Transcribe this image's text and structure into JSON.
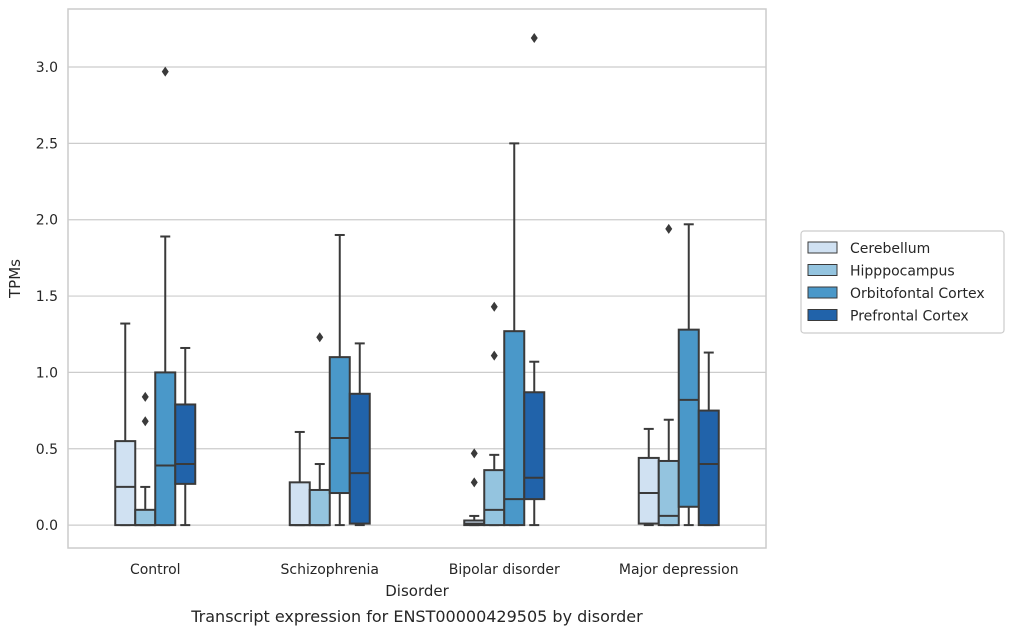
{
  "chart_data": {
    "type": "box",
    "title": "",
    "caption": "Transcript expression for ENST00000429505 by disorder",
    "xlabel": "Disorder",
    "ylabel": "TPMs",
    "ylim": [
      -0.15,
      3.38
    ],
    "yticks": [
      0.0,
      0.5,
      1.0,
      1.5,
      2.0,
      2.5,
      3.0
    ],
    "ytick_labels": [
      "0.0",
      "0.5",
      "1.0",
      "1.5",
      "2.0",
      "2.5",
      "3.0"
    ],
    "grid": "horizontal",
    "legend_position": "right",
    "categories": [
      "Control",
      "Schizophrenia",
      "Bipolar disorder",
      "Major depression"
    ],
    "series": [
      {
        "name": "Cerebellum",
        "color": "#d0e1f2",
        "boxes": [
          {
            "whisker_low": 0.0,
            "q1": 0.0,
            "median": 0.25,
            "q3": 0.55,
            "whisker_high": 1.32,
            "outliers": []
          },
          {
            "whisker_low": 0.0,
            "q1": 0.0,
            "median": 0.0,
            "q3": 0.28,
            "whisker_high": 0.61,
            "outliers": []
          },
          {
            "whisker_low": 0.0,
            "q1": 0.0,
            "median": 0.01,
            "q3": 0.03,
            "whisker_high": 0.06,
            "outliers": [
              0.28,
              0.47
            ]
          },
          {
            "whisker_low": 0.0,
            "q1": 0.01,
            "median": 0.21,
            "q3": 0.44,
            "whisker_high": 0.63,
            "outliers": []
          }
        ]
      },
      {
        "name": "Hipppocampus",
        "color": "#94c4df",
        "boxes": [
          {
            "whisker_low": 0.0,
            "q1": 0.0,
            "median": 0.0,
            "q3": 0.1,
            "whisker_high": 0.25,
            "outliers": [
              0.68,
              0.84
            ]
          },
          {
            "whisker_low": 0.0,
            "q1": 0.0,
            "median": 0.0,
            "q3": 0.23,
            "whisker_high": 0.4,
            "outliers": [
              1.23
            ]
          },
          {
            "whisker_low": 0.0,
            "q1": 0.0,
            "median": 0.1,
            "q3": 0.36,
            "whisker_high": 0.46,
            "outliers": [
              1.11,
              1.43
            ]
          },
          {
            "whisker_low": 0.0,
            "q1": 0.0,
            "median": 0.06,
            "q3": 0.42,
            "whisker_high": 0.69,
            "outliers": [
              1.94
            ]
          }
        ]
      },
      {
        "name": "Orbitofontal Cortex",
        "color": "#4a98c9",
        "boxes": [
          {
            "whisker_low": 0.0,
            "q1": 0.0,
            "median": 0.39,
            "q3": 1.0,
            "whisker_high": 1.89,
            "outliers": [
              2.97
            ]
          },
          {
            "whisker_low": 0.0,
            "q1": 0.21,
            "median": 0.57,
            "q3": 1.1,
            "whisker_high": 1.9,
            "outliers": []
          },
          {
            "whisker_low": 0.0,
            "q1": 0.0,
            "median": 0.17,
            "q3": 1.27,
            "whisker_high": 2.5,
            "outliers": []
          },
          {
            "whisker_low": 0.0,
            "q1": 0.12,
            "median": 0.82,
            "q3": 1.28,
            "whisker_high": 1.97,
            "outliers": []
          }
        ]
      },
      {
        "name": "Prefrontal Cortex",
        "color": "#2163aa",
        "boxes": [
          {
            "whisker_low": 0.0,
            "q1": 0.27,
            "median": 0.4,
            "q3": 0.79,
            "whisker_high": 1.16,
            "outliers": []
          },
          {
            "whisker_low": 0.0,
            "q1": 0.01,
            "median": 0.34,
            "q3": 0.86,
            "whisker_high": 1.19,
            "outliers": []
          },
          {
            "whisker_low": 0.0,
            "q1": 0.17,
            "median": 0.31,
            "q3": 0.87,
            "whisker_high": 1.07,
            "outliers": [
              3.19
            ]
          },
          {
            "whisker_low": 0.0,
            "q1": 0.0,
            "median": 0.4,
            "q3": 0.75,
            "whisker_high": 1.13,
            "outliers": []
          }
        ]
      }
    ]
  }
}
